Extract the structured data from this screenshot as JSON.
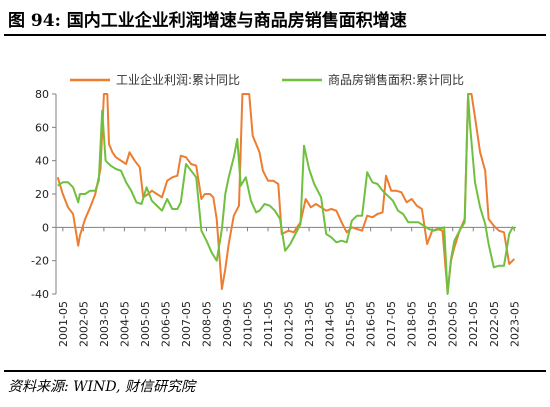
{
  "figure": {
    "title": "图 94:  国内工业企业利润增速与商品房销售面积增速",
    "source": "资料来源: WIND, 财信研究院"
  },
  "colors": {
    "profit": "#ED7D31",
    "sales": "#70C040"
  },
  "chart_data": {
    "type": "line",
    "title": "",
    "xlabel": "",
    "ylabel": "",
    "ylim": [
      -40,
      80
    ],
    "yticks": [
      -40,
      -20,
      0,
      20,
      40,
      60,
      80
    ],
    "xlim": [
      "2001-01",
      "2023-06"
    ],
    "xticks": [
      "2001-05",
      "2002-05",
      "2003-05",
      "2004-05",
      "2005-05",
      "2006-05",
      "2007-05",
      "2008-05",
      "2009-05",
      "2010-05",
      "2011-05",
      "2012-05",
      "2013-05",
      "2014-05",
      "2015-05",
      "2016-05",
      "2017-05",
      "2018-05",
      "2019-05",
      "2020-05",
      "2021-05",
      "2022-05",
      "2023-05"
    ],
    "grid": false,
    "legend": "top",
    "series": [
      {
        "name": "工业企业利润:累计同比",
        "color": "#ED7D31",
        "points": [
          [
            "2001-02",
            30
          ],
          [
            "2001-05",
            20
          ],
          [
            "2001-08",
            12
          ],
          [
            "2001-11",
            8
          ],
          [
            "2002-02",
            -11
          ],
          [
            "2002-03",
            -5
          ],
          [
            "2002-06",
            5
          ],
          [
            "2002-09",
            12
          ],
          [
            "2002-12",
            20
          ],
          [
            "2003-03",
            35
          ],
          [
            "2003-05",
            80
          ],
          [
            "2003-07",
            80
          ],
          [
            "2003-08",
            50
          ],
          [
            "2003-10",
            45
          ],
          [
            "2003-12",
            42
          ],
          [
            "2004-03",
            40
          ],
          [
            "2004-06",
            38
          ],
          [
            "2004-08",
            45
          ],
          [
            "2004-11",
            40
          ],
          [
            "2005-02",
            36
          ],
          [
            "2005-04",
            18
          ],
          [
            "2005-07",
            20
          ],
          [
            "2005-09",
            22
          ],
          [
            "2005-12",
            20
          ],
          [
            "2006-03",
            18
          ],
          [
            "2006-06",
            28
          ],
          [
            "2006-09",
            30
          ],
          [
            "2006-12",
            31
          ],
          [
            "2007-02",
            43
          ],
          [
            "2007-05",
            42
          ],
          [
            "2007-08",
            38
          ],
          [
            "2007-11",
            37
          ],
          [
            "2008-02",
            17
          ],
          [
            "2008-04",
            20
          ],
          [
            "2008-07",
            20
          ],
          [
            "2008-09",
            18
          ],
          [
            "2008-11",
            5
          ],
          [
            "2009-02",
            -37
          ],
          [
            "2009-04",
            -25
          ],
          [
            "2009-06",
            -10
          ],
          [
            "2009-09",
            7
          ],
          [
            "2009-12",
            13
          ],
          [
            "2010-02",
            80
          ],
          [
            "2010-04",
            80
          ],
          [
            "2010-06",
            80
          ],
          [
            "2010-08",
            55
          ],
          [
            "2010-10",
            50
          ],
          [
            "2010-12",
            45
          ],
          [
            "2011-02",
            34
          ],
          [
            "2011-05",
            28
          ],
          [
            "2011-08",
            28
          ],
          [
            "2011-11",
            26
          ],
          [
            "2012-01",
            -4
          ],
          [
            "2012-05",
            -2
          ],
          [
            "2012-08",
            -3
          ],
          [
            "2012-12",
            3
          ],
          [
            "2013-03",
            17
          ],
          [
            "2013-06",
            12
          ],
          [
            "2013-09",
            14
          ],
          [
            "2013-12",
            12
          ],
          [
            "2014-03",
            10
          ],
          [
            "2014-06",
            11
          ],
          [
            "2014-09",
            10
          ],
          [
            "2014-12",
            3
          ],
          [
            "2015-03",
            -3
          ],
          [
            "2015-06",
            0
          ],
          [
            "2015-09",
            -1
          ],
          [
            "2015-12",
            -2
          ],
          [
            "2016-03",
            7
          ],
          [
            "2016-06",
            6
          ],
          [
            "2016-09",
            8
          ],
          [
            "2016-12",
            9
          ],
          [
            "2017-02",
            31
          ],
          [
            "2017-05",
            22
          ],
          [
            "2017-08",
            22
          ],
          [
            "2017-11",
            21
          ],
          [
            "2018-02",
            15
          ],
          [
            "2018-05",
            17
          ],
          [
            "2018-08",
            13
          ],
          [
            "2018-11",
            11
          ],
          [
            "2019-02",
            -10
          ],
          [
            "2019-05",
            -2
          ],
          [
            "2019-08",
            -1
          ],
          [
            "2019-11",
            -2
          ],
          [
            "2020-02",
            -39
          ],
          [
            "2020-04",
            -20
          ],
          [
            "2020-06",
            -12
          ],
          [
            "2020-09",
            -2
          ],
          [
            "2020-12",
            5
          ],
          [
            "2021-02",
            80
          ],
          [
            "2021-04",
            80
          ],
          [
            "2021-06",
            66
          ],
          [
            "2021-09",
            45
          ],
          [
            "2021-12",
            34
          ],
          [
            "2022-02",
            5
          ],
          [
            "2022-05",
            1
          ],
          [
            "2022-08",
            -2
          ],
          [
            "2022-11",
            -3
          ],
          [
            "2023-02",
            -22
          ],
          [
            "2023-04",
            -20
          ],
          [
            "2023-05",
            -19
          ]
        ]
      },
      {
        "name": "商品房销售面积:累计同比",
        "color": "#70C040",
        "points": [
          [
            "2001-02",
            25
          ],
          [
            "2001-05",
            27
          ],
          [
            "2001-08",
            27
          ],
          [
            "2001-11",
            24
          ],
          [
            "2002-02",
            15
          ],
          [
            "2002-03",
            20
          ],
          [
            "2002-06",
            20
          ],
          [
            "2002-09",
            22
          ],
          [
            "2002-12",
            22
          ],
          [
            "2003-02",
            28
          ],
          [
            "2003-04",
            70
          ],
          [
            "2003-05",
            55
          ],
          [
            "2003-06",
            40
          ],
          [
            "2003-09",
            37
          ],
          [
            "2003-12",
            35
          ],
          [
            "2004-03",
            34
          ],
          [
            "2004-06",
            27
          ],
          [
            "2004-09",
            22
          ],
          [
            "2004-12",
            15
          ],
          [
            "2005-03",
            14
          ],
          [
            "2005-06",
            24
          ],
          [
            "2005-09",
            16
          ],
          [
            "2005-12",
            13
          ],
          [
            "2006-03",
            10
          ],
          [
            "2006-06",
            17
          ],
          [
            "2006-09",
            11
          ],
          [
            "2006-12",
            11
          ],
          [
            "2007-02",
            15
          ],
          [
            "2007-05",
            38
          ],
          [
            "2007-08",
            34
          ],
          [
            "2007-11",
            30
          ],
          [
            "2008-02",
            -2
          ],
          [
            "2008-05",
            -8
          ],
          [
            "2008-08",
            -15
          ],
          [
            "2008-11",
            -20
          ],
          [
            "2009-02",
            -1
          ],
          [
            "2009-04",
            20
          ],
          [
            "2009-06",
            30
          ],
          [
            "2009-09",
            42
          ],
          [
            "2009-11",
            53
          ],
          [
            "2010-01",
            25
          ],
          [
            "2010-04",
            30
          ],
          [
            "2010-07",
            16
          ],
          [
            "2010-10",
            9
          ],
          [
            "2010-12",
            10
          ],
          [
            "2011-03",
            14
          ],
          [
            "2011-06",
            13
          ],
          [
            "2011-09",
            10
          ],
          [
            "2011-12",
            5
          ],
          [
            "2012-03",
            -14
          ],
          [
            "2012-06",
            -10
          ],
          [
            "2012-09",
            -4
          ],
          [
            "2012-12",
            2
          ],
          [
            "2013-02",
            49
          ],
          [
            "2013-05",
            35
          ],
          [
            "2013-08",
            26
          ],
          [
            "2013-12",
            18
          ],
          [
            "2014-03",
            -4
          ],
          [
            "2014-06",
            -6
          ],
          [
            "2014-09",
            -9
          ],
          [
            "2014-12",
            -8
          ],
          [
            "2015-03",
            -9
          ],
          [
            "2015-06",
            4
          ],
          [
            "2015-09",
            7
          ],
          [
            "2015-12",
            7
          ],
          [
            "2016-03",
            33
          ],
          [
            "2016-06",
            27
          ],
          [
            "2016-09",
            26
          ],
          [
            "2016-12",
            22
          ],
          [
            "2017-03",
            19
          ],
          [
            "2017-06",
            16
          ],
          [
            "2017-09",
            10
          ],
          [
            "2017-12",
            8
          ],
          [
            "2018-03",
            3
          ],
          [
            "2018-06",
            3
          ],
          [
            "2018-09",
            3
          ],
          [
            "2018-12",
            1
          ],
          [
            "2019-03",
            -1
          ],
          [
            "2019-06",
            -2
          ],
          [
            "2019-09",
            -1
          ],
          [
            "2019-12",
            0
          ],
          [
            "2020-02",
            -40
          ],
          [
            "2020-04",
            -19
          ],
          [
            "2020-06",
            -8
          ],
          [
            "2020-09",
            -2
          ],
          [
            "2020-12",
            3
          ],
          [
            "2021-02",
            80
          ],
          [
            "2021-03",
            63
          ],
          [
            "2021-06",
            27
          ],
          [
            "2021-09",
            12
          ],
          [
            "2021-12",
            2
          ],
          [
            "2022-02",
            -10
          ],
          [
            "2022-05",
            -24
          ],
          [
            "2022-08",
            -23
          ],
          [
            "2022-11",
            -23
          ],
          [
            "2023-02",
            -4
          ],
          [
            "2023-04",
            0
          ],
          [
            "2023-05",
            -1
          ]
        ]
      }
    ]
  }
}
